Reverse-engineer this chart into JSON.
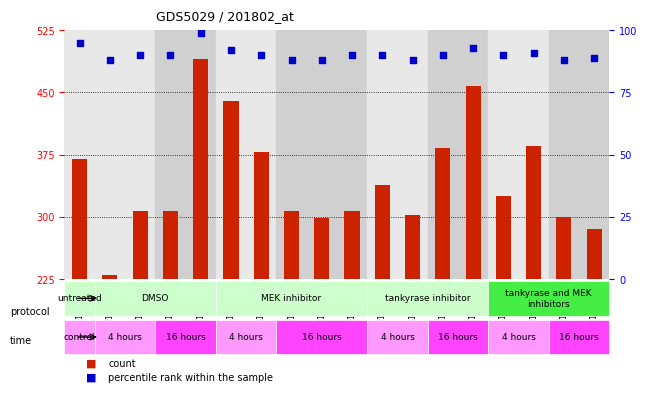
{
  "title": "GDS5029 / 201802_at",
  "samples": [
    "GSM1340521",
    "GSM1340522",
    "GSM1340523",
    "GSM1340524",
    "GSM1340531",
    "GSM1340532",
    "GSM1340527",
    "GSM1340528",
    "GSM1340535",
    "GSM1340536",
    "GSM1340525",
    "GSM1340526",
    "GSM1340533",
    "GSM1340534",
    "GSM1340529",
    "GSM1340530",
    "GSM1340537",
    "GSM1340538"
  ],
  "bar_values": [
    370,
    230,
    307,
    307,
    490,
    440,
    378,
    307,
    299,
    307,
    338,
    302,
    383,
    458,
    325,
    385,
    300,
    285
  ],
  "dot_values": [
    95,
    88,
    90,
    90,
    99,
    92,
    90,
    88,
    88,
    90,
    90,
    88,
    90,
    93,
    90,
    91,
    88,
    89
  ],
  "ylim_left": [
    225,
    525
  ],
  "ylim_right": [
    0,
    100
  ],
  "yticks_left": [
    225,
    300,
    375,
    450,
    525
  ],
  "yticks_right": [
    0,
    25,
    50,
    75,
    100
  ],
  "bar_color": "#cc2200",
  "dot_color": "#0000cc",
  "grid_color": "#000000",
  "protocol_labels": [
    {
      "label": "untreated",
      "start": 0,
      "end": 1,
      "color": "#ccffcc"
    },
    {
      "label": "DMSO",
      "start": 1,
      "end": 5,
      "color": "#ccffcc"
    },
    {
      "label": "MEK inhibitor",
      "start": 5,
      "end": 10,
      "color": "#ccffcc"
    },
    {
      "label": "tankyrase inhibitor",
      "start": 10,
      "end": 14,
      "color": "#ccffcc"
    },
    {
      "label": "tankyrase and MEK\ninhibitors",
      "start": 14,
      "end": 18,
      "color": "#44ee44"
    }
  ],
  "time_labels": [
    {
      "label": "control",
      "start": 0,
      "end": 1,
      "color": "#ff99ff"
    },
    {
      "label": "4 hours",
      "start": 1,
      "end": 3,
      "color": "#ff99ff"
    },
    {
      "label": "16 hours",
      "start": 3,
      "end": 5,
      "color": "#ff44ff"
    },
    {
      "label": "4 hours",
      "start": 5,
      "end": 7,
      "color": "#ff99ff"
    },
    {
      "label": "16 hours",
      "start": 7,
      "end": 10,
      "color": "#ff44ff"
    },
    {
      "label": "4 hours",
      "start": 10,
      "end": 12,
      "color": "#ff99ff"
    },
    {
      "label": "16 hours",
      "start": 12,
      "end": 14,
      "color": "#ff44ff"
    },
    {
      "label": "4 hours",
      "start": 14,
      "end": 16,
      "color": "#ff99ff"
    },
    {
      "label": "16 hours",
      "start": 16,
      "end": 18,
      "color": "#ff44ff"
    }
  ],
  "bg_colors": [
    {
      "start": 0,
      "end": 1,
      "color": "#e8e8e8"
    },
    {
      "start": 1,
      "end": 3,
      "color": "#e8e8e8"
    },
    {
      "start": 3,
      "end": 5,
      "color": "#d0d0d0"
    },
    {
      "start": 5,
      "end": 7,
      "color": "#e8e8e8"
    },
    {
      "start": 7,
      "end": 10,
      "color": "#d0d0d0"
    },
    {
      "start": 10,
      "end": 12,
      "color": "#e8e8e8"
    },
    {
      "start": 12,
      "end": 14,
      "color": "#d0d0d0"
    },
    {
      "start": 14,
      "end": 16,
      "color": "#e8e8e8"
    },
    {
      "start": 16,
      "end": 18,
      "color": "#d0d0d0"
    }
  ]
}
